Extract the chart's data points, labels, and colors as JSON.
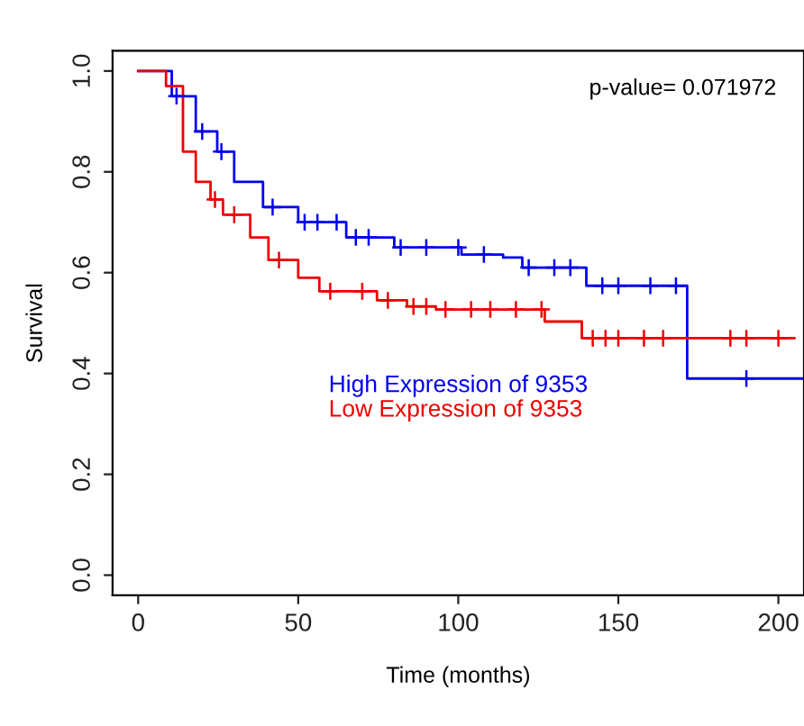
{
  "chart_data": {
    "type": "step",
    "xlabel": "Time (months)",
    "ylabel": "Survival",
    "xlim": [
      -8,
      208
    ],
    "ylim": [
      -0.04,
      1.04
    ],
    "xticks": [
      0,
      50,
      100,
      150,
      200
    ],
    "yticks": [
      {
        "value": 0,
        "label": "0.0"
      },
      {
        "value": 0.2,
        "label": "0.2"
      },
      {
        "value": 0.4,
        "label": "0.4"
      },
      {
        "value": 0.6,
        "label": "0.6"
      },
      {
        "value": 0.8,
        "label": "0.8"
      },
      {
        "value": 1,
        "label": "1.0"
      }
    ],
    "grid": false,
    "legend": "bottom center",
    "annotations": [
      {
        "text": "p-value= 0.071972"
      }
    ],
    "series": [
      {
        "name": "High Expression of 9353",
        "color": "#0000ee",
        "x": [
          0,
          10.5,
          18,
          24.7,
          30,
          39,
          50,
          65,
          80,
          101,
          114,
          120,
          140,
          171.5,
          208
        ],
        "values": [
          1.0,
          0.95,
          0.88,
          0.84,
          0.78,
          0.73,
          0.7,
          0.67,
          0.65,
          0.636,
          0.63,
          0.61,
          0.574,
          0.39,
          0.39
        ]
      },
      {
        "name": "Low Expression of 9353",
        "color": "#ee0000",
        "x": [
          0,
          8.7,
          14,
          18,
          22.6,
          26.5,
          35,
          40.7,
          50,
          56.6,
          74.6,
          84,
          93,
          127,
          138.6,
          205
        ],
        "values": [
          1.0,
          0.97,
          0.84,
          0.78,
          0.745,
          0.715,
          0.67,
          0.625,
          0.59,
          0.563,
          0.545,
          0.533,
          0.527,
          0.503,
          0.47,
          0.47
        ]
      },
      {
        "type": "scatter",
        "marker": "cross",
        "color": "#0000ee",
        "x": [
          12,
          20,
          26,
          42,
          52,
          56,
          62,
          68,
          72,
          82,
          90,
          100,
          108,
          122,
          130,
          135,
          145,
          150,
          160,
          168,
          190
        ],
        "values": [
          0.95,
          0.88,
          0.84,
          0.73,
          0.7,
          0.7,
          0.7,
          0.67,
          0.67,
          0.65,
          0.65,
          0.65,
          0.636,
          0.61,
          0.61,
          0.61,
          0.574,
          0.574,
          0.574,
          0.574,
          0.39
        ]
      },
      {
        "type": "scatter",
        "marker": "cross",
        "color": "#ee0000",
        "x": [
          24,
          30,
          44,
          60,
          70,
          78,
          86,
          90,
          96,
          104,
          110,
          118,
          126,
          142,
          146,
          150,
          158,
          164,
          185,
          190,
          200
        ],
        "values": [
          0.745,
          0.715,
          0.625,
          0.563,
          0.563,
          0.545,
          0.533,
          0.533,
          0.527,
          0.527,
          0.527,
          0.527,
          0.527,
          0.47,
          0.47,
          0.47,
          0.47,
          0.47,
          0.47,
          0.47,
          0.47
        ]
      }
    ]
  }
}
